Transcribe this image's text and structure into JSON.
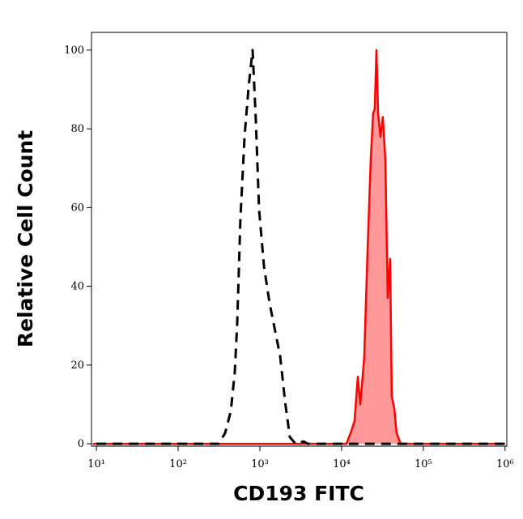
{
  "chart_data": {
    "type": "line",
    "x_label": "CD193 FITC",
    "y_label": "Relative Cell Count",
    "xscale": "log",
    "xlim": [
      8.7,
      1050000
    ],
    "ylim": [
      -0.6,
      104.5
    ],
    "xticks": [
      {
        "value": 10,
        "label": "10¹"
      },
      {
        "value": 100,
        "label": "10²"
      },
      {
        "value": 1000,
        "label": "10³"
      },
      {
        "value": 10000,
        "label": "10⁴"
      },
      {
        "value": 100000,
        "label": "10⁵"
      },
      {
        "value": 1000000,
        "label": "10⁶"
      }
    ],
    "yticks": [
      0,
      20,
      40,
      60,
      80,
      100
    ],
    "series": [
      {
        "color": "#ff0000",
        "fill": "#ff9999",
        "style": "solid",
        "x": [
          9,
          11460,
          12850,
          14400,
          15780,
          16900,
          18930,
          20750,
          22720,
          24330,
          25470,
          26670,
          27920,
          29870,
          31990,
          34270,
          36650,
          39260,
          41100,
          44060,
          47100,
          52840,
          1000000
        ],
        "values": [
          0,
          0,
          2.7,
          5.8,
          17,
          10,
          22,
          49,
          72,
          84,
          85,
          100,
          84,
          78,
          83,
          72,
          37,
          47,
          12,
          9,
          2.7,
          0,
          0
        ]
      },
      {
        "color": "#000000",
        "style": "dashed",
        "x": [
          10,
          313,
          375,
          441,
          493,
          528,
          578,
          649,
          726,
          815,
          892,
          978,
          1122,
          1316,
          1542,
          1770,
          2029,
          2325,
          2729,
          3430,
          3840,
          1000000
        ],
        "values": [
          0,
          0,
          2.7,
          8.3,
          18.2,
          30.6,
          57.4,
          78.1,
          90.5,
          100,
          82.2,
          59.5,
          45,
          35.7,
          28.5,
          22.3,
          10.9,
          1.7,
          0,
          0.6,
          0,
          0
        ]
      }
    ]
  }
}
